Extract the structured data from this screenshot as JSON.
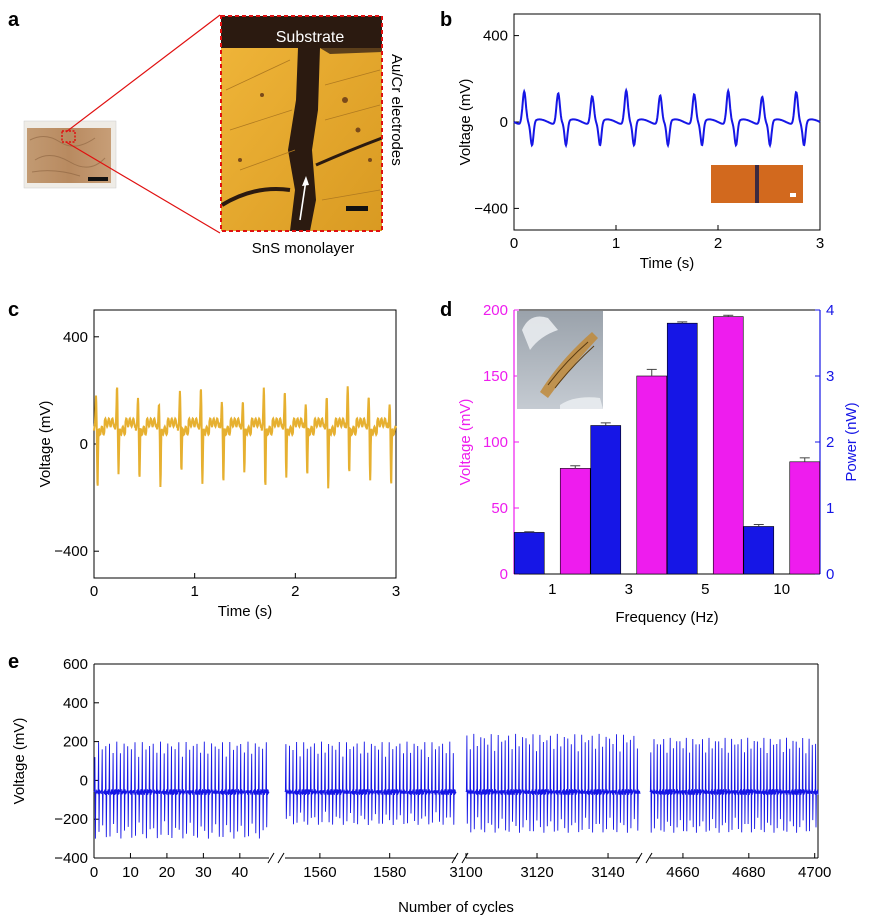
{
  "panels": {
    "a": {
      "letter": "a",
      "substrate_label": "Substrate",
      "electrode_label": "Au/Cr electrodes",
      "monolayer_label": "SnS monolayer"
    },
    "b": {
      "letter": "b"
    },
    "c": {
      "letter": "c"
    },
    "d": {
      "letter": "d"
    },
    "e": {
      "letter": "e"
    }
  },
  "colors": {
    "blue": "#1616e6",
    "yellow": "#e6b030",
    "magenta": "#ee1cee",
    "red_dash": "#e01010",
    "micro_bg": "#e3a52c",
    "substrate_dark": "#2b1a10"
  },
  "chart_data": [
    {
      "id": "b",
      "type": "line",
      "xlabel": "Time (s)",
      "ylabel": "Voltage (mV)",
      "xlim": [
        0,
        3
      ],
      "ylim": [
        -500,
        500
      ],
      "xticks": [
        "0",
        "1",
        "2",
        "3"
      ],
      "yticks": [
        "400",
        "0",
        "−400"
      ],
      "yticks_values": [
        400,
        0,
        -400
      ],
      "peaks_per_sec": 3.0,
      "positive_peak_mV": 150,
      "negative_peak_mV": -110,
      "color": "#1616e6"
    },
    {
      "id": "c",
      "type": "line",
      "xlabel": "Time (s)",
      "ylabel": "Voltage (mV)",
      "xlim": [
        0,
        3
      ],
      "ylim": [
        -500,
        500
      ],
      "xticks": [
        "0",
        "1",
        "2",
        "3"
      ],
      "yticks": [
        "400",
        "0",
        "−400"
      ],
      "yticks_values": [
        400,
        0,
        -400
      ],
      "peaks_per_sec": 4.8,
      "positive_peak_mV": 175,
      "negative_peak_mV": -210,
      "color": "#e6b030"
    },
    {
      "id": "d",
      "type": "bar",
      "xlabel": "Frequency (Hz)",
      "ylabel_left": "Voltage (mV)",
      "ylabel_right": "Power (nW)",
      "categories": [
        "1",
        "3",
        "5",
        "10"
      ],
      "ylim_left": [
        0,
        200
      ],
      "ylim_right": [
        0,
        4
      ],
      "yticks_left": [
        "0",
        "50",
        "100",
        "150",
        "200"
      ],
      "yticks_right": [
        "0",
        "1",
        "2",
        "3",
        "4"
      ],
      "series": [
        {
          "name": "Power (nW)",
          "axis": "right",
          "values": [
            0.63,
            2.25,
            3.8,
            0.72
          ],
          "errors": [
            0.01,
            0.04,
            0.02,
            0.03
          ],
          "color": "#1616e6"
        },
        {
          "name": "Voltage (mV)",
          "axis": "left",
          "values": [
            80,
            150,
            195,
            85
          ],
          "errors": [
            2,
            5,
            1,
            3
          ],
          "color": "#ee1cee"
        }
      ]
    },
    {
      "id": "e",
      "type": "line",
      "xlabel": "Number of cycles",
      "ylabel": "Voltage (mV)",
      "ylim": [
        -400,
        600
      ],
      "yticks": [
        "600",
        "400",
        "200",
        "0",
        "−200",
        "−400"
      ],
      "yticks_values": [
        600,
        400,
        200,
        0,
        -200,
        -400
      ],
      "segments": [
        {
          "xrange": [
            0,
            48
          ],
          "xticks": [
            "0",
            "10",
            "20",
            "30",
            "40"
          ],
          "xticks_values": [
            0,
            10,
            20,
            30,
            40
          ],
          "spikes": 48,
          "max_mV": 200,
          "min_mV": -300
        },
        {
          "xrange": [
            1550,
            1599
          ],
          "xticks": [
            "1560",
            "1580"
          ],
          "xticks_values": [
            1560,
            1580
          ],
          "spikes": 48,
          "max_mV": 200,
          "min_mV": -230
        },
        {
          "xrange": [
            3100,
            3149
          ],
          "xticks": [
            "3100",
            "3120",
            "3140"
          ],
          "xticks_values": [
            3100,
            3120,
            3140
          ],
          "spikes": 50,
          "max_mV": 240,
          "min_mV": -270
        },
        {
          "xrange": [
            4650,
            4701
          ],
          "xticks": [
            "4660",
            "4680",
            "4700"
          ],
          "xticks_values": [
            4660,
            4680,
            4700
          ],
          "spikes": 52,
          "max_mV": 220,
          "min_mV": -270
        }
      ],
      "color": "#1616e6"
    }
  ]
}
